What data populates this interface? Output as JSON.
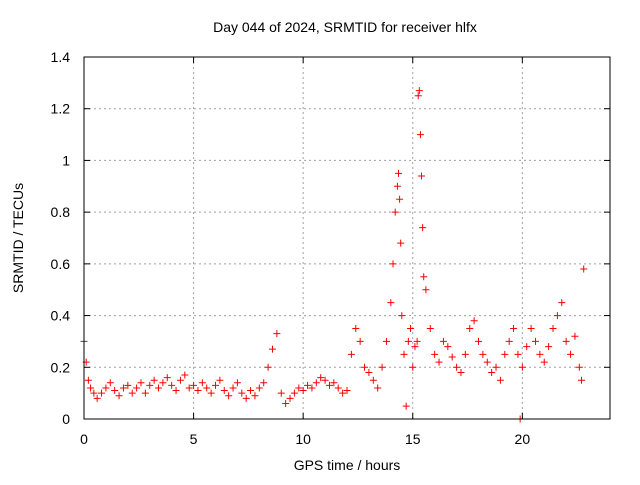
{
  "chart_data": {
    "type": "scatter",
    "title": "Day 044 of 2024, SRMTID for receiver hlfx",
    "xlabel": "GPS time / hours",
    "ylabel": "SRMTID / TECUs",
    "xlim": [
      0,
      24
    ],
    "ylim": [
      0,
      1.4
    ],
    "xticks": [
      0,
      5,
      10,
      15,
      20
    ],
    "yticks": [
      0,
      0.2,
      0.4,
      0.6,
      0.8,
      1,
      1.2,
      1.4
    ],
    "xtick_labels": [
      "0",
      "5",
      "10",
      "15",
      "20"
    ],
    "ytick_labels": [
      "0",
      "0.2",
      "0.4",
      "0.6",
      "0.8",
      "1",
      "1.2",
      "1.4"
    ],
    "grid": true,
    "marker": "+",
    "color": "#ff0000",
    "series": [
      {
        "name": "SRMTID",
        "x": [
          0.0,
          0.1,
          0.2,
          0.3,
          0.45,
          0.6,
          0.8,
          1.0,
          1.2,
          1.4,
          1.6,
          1.8,
          2.0,
          2.2,
          2.4,
          2.6,
          2.8,
          3.0,
          3.2,
          3.4,
          3.6,
          3.8,
          4.0,
          4.2,
          4.4,
          4.6,
          4.8,
          5.0,
          5.2,
          5.4,
          5.6,
          5.8,
          6.0,
          6.2,
          6.4,
          6.6,
          6.8,
          7.0,
          7.2,
          7.4,
          7.6,
          7.8,
          8.0,
          8.2,
          8.4,
          8.6,
          8.8,
          9.0,
          9.2,
          9.4,
          9.6,
          9.8,
          10.0,
          10.2,
          10.4,
          10.6,
          10.8,
          11.0,
          11.2,
          11.4,
          11.6,
          11.8,
          12.0,
          12.2,
          12.4,
          12.6,
          12.8,
          13.0,
          13.2,
          13.4,
          13.6,
          13.8,
          14.0,
          14.1,
          14.2,
          14.3,
          14.35,
          14.4,
          14.45,
          14.5,
          14.6,
          14.7,
          14.8,
          14.9,
          15.0,
          15.1,
          15.2,
          15.25,
          15.3,
          15.35,
          15.4,
          15.45,
          15.5,
          15.6,
          15.8,
          16.0,
          16.2,
          16.4,
          16.6,
          16.8,
          17.0,
          17.2,
          17.4,
          17.6,
          17.8,
          18.0,
          18.2,
          18.4,
          18.6,
          18.8,
          19.0,
          19.2,
          19.4,
          19.6,
          19.8,
          19.9,
          20.0,
          20.2,
          20.4,
          20.6,
          20.8,
          21.0,
          21.2,
          21.4,
          21.6,
          21.8,
          22.0,
          22.2,
          22.4,
          22.6,
          22.7,
          22.8
        ],
        "y": [
          0.3,
          0.22,
          0.15,
          0.12,
          0.1,
          0.08,
          0.1,
          0.12,
          0.14,
          0.11,
          0.09,
          0.12,
          0.13,
          0.1,
          0.12,
          0.14,
          0.1,
          0.13,
          0.15,
          0.12,
          0.14,
          0.16,
          0.13,
          0.11,
          0.15,
          0.17,
          0.12,
          0.13,
          0.11,
          0.14,
          0.12,
          0.1,
          0.13,
          0.15,
          0.11,
          0.09,
          0.12,
          0.14,
          0.1,
          0.08,
          0.11,
          0.09,
          0.12,
          0.14,
          0.2,
          0.27,
          0.33,
          0.1,
          0.06,
          0.08,
          0.1,
          0.12,
          0.11,
          0.13,
          0.12,
          0.14,
          0.16,
          0.15,
          0.13,
          0.14,
          0.12,
          0.1,
          0.11,
          0.25,
          0.35,
          0.3,
          0.2,
          0.18,
          0.15,
          0.12,
          0.2,
          0.3,
          0.45,
          0.6,
          0.8,
          0.9,
          0.95,
          0.85,
          0.68,
          0.4,
          0.25,
          0.05,
          0.3,
          0.35,
          0.2,
          0.28,
          0.3,
          1.25,
          1.27,
          1.1,
          0.94,
          0.74,
          0.55,
          0.5,
          0.35,
          0.25,
          0.22,
          0.3,
          0.28,
          0.24,
          0.2,
          0.18,
          0.25,
          0.35,
          0.38,
          0.3,
          0.25,
          0.22,
          0.18,
          0.2,
          0.15,
          0.25,
          0.3,
          0.35,
          0.25,
          0.0,
          0.2,
          0.28,
          0.35,
          0.3,
          0.25,
          0.22,
          0.28,
          0.35,
          0.4,
          0.45,
          0.3,
          0.25,
          0.32,
          0.2,
          0.15,
          0.58
        ]
      }
    ]
  }
}
